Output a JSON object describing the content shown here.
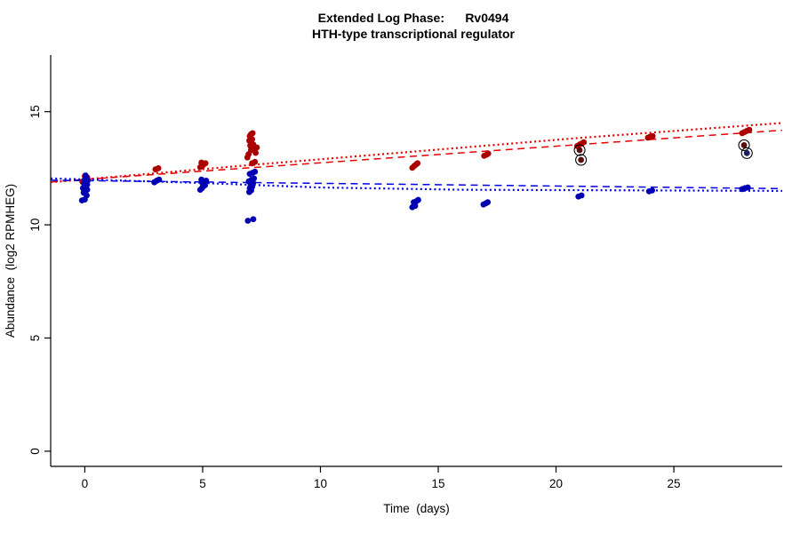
{
  "chart_data": {
    "type": "scatter",
    "title": "Extended Log Phase:      Rv0494",
    "subtitle": "HTH-type transcriptional regulator",
    "xlabel": "Time  (days)",
    "ylabel": "Abundance  (log2 RPMHEG)",
    "xlim": [
      -1.45,
      29.6
    ],
    "ylim": [
      -0.67,
      17.5
    ],
    "xticks": [
      0,
      5,
      10,
      15,
      20,
      25
    ],
    "yticks": [
      0,
      5,
      10,
      15
    ],
    "grid": false,
    "legend": null,
    "colors": {
      "red_points": "#AA0000",
      "blue_points": "#0000B2",
      "red_line": "#E60000",
      "blue_line": "#0000E6",
      "axis": "#000000"
    },
    "series": [
      {
        "name": "red-abundance",
        "color": "#AA0000",
        "points": [
          [
            -0.1,
            11.9
          ],
          [
            0,
            11.95
          ],
          [
            0.05,
            12.05
          ],
          [
            0.1,
            12.1
          ],
          [
            0,
            12.15
          ],
          [
            0.05,
            11.85
          ],
          [
            3,
            12.45
          ],
          [
            3.12,
            12.5
          ],
          [
            4.9,
            12.55
          ],
          [
            5,
            12.62
          ],
          [
            5.05,
            12.68
          ],
          [
            5.12,
            12.72
          ],
          [
            4.95,
            12.75
          ],
          [
            6.9,
            12.98
          ],
          [
            6.95,
            13.12
          ],
          [
            7,
            13.92
          ],
          [
            7.05,
            14.0
          ],
          [
            7.12,
            14.05
          ],
          [
            6.98,
            13.72
          ],
          [
            7.1,
            13.78
          ],
          [
            7.02,
            13.5
          ],
          [
            7.15,
            13.55
          ],
          [
            7.05,
            13.3
          ],
          [
            7.2,
            13.35
          ],
          [
            7.25,
            13.18
          ],
          [
            7.1,
            12.72
          ],
          [
            7.22,
            12.78
          ],
          [
            7.3,
            13.42
          ],
          [
            13.9,
            12.52
          ],
          [
            13.98,
            12.6
          ],
          [
            14.05,
            12.66
          ],
          [
            14.12,
            12.72
          ],
          [
            16.95,
            13.05
          ],
          [
            17.05,
            13.1
          ],
          [
            17.12,
            13.15
          ],
          [
            20.9,
            13.48
          ],
          [
            21,
            13.55
          ],
          [
            21.1,
            13.6
          ],
          [
            21.18,
            13.65
          ],
          [
            23.9,
            13.85
          ],
          [
            24,
            13.9
          ],
          [
            24.1,
            13.92
          ],
          [
            27.9,
            14.05
          ],
          [
            28,
            14.1
          ],
          [
            28.1,
            14.15
          ],
          [
            28.2,
            14.2
          ]
        ]
      },
      {
        "name": "blue-abundance",
        "color": "#0000B2",
        "points": [
          [
            -0.12,
            11.08
          ],
          [
            0,
            11.12
          ],
          [
            0.08,
            11.3
          ],
          [
            -0.05,
            11.42
          ],
          [
            0,
            11.5
          ],
          [
            0.1,
            11.55
          ],
          [
            -0.08,
            11.62
          ],
          [
            0.05,
            11.65
          ],
          [
            0,
            11.72
          ],
          [
            0.1,
            11.78
          ],
          [
            -0.03,
            11.82
          ],
          [
            0.06,
            11.88
          ],
          [
            0.12,
            11.95
          ],
          [
            0,
            12.0
          ],
          [
            0.08,
            12.05
          ],
          [
            0.03,
            12.18
          ],
          [
            2.95,
            11.88
          ],
          [
            3.05,
            11.95
          ],
          [
            3.15,
            12.0
          ],
          [
            4.9,
            11.55
          ],
          [
            4.97,
            11.62
          ],
          [
            5.03,
            11.7
          ],
          [
            5.1,
            11.75
          ],
          [
            5.0,
            11.82
          ],
          [
            5.08,
            11.88
          ],
          [
            5.15,
            11.95
          ],
          [
            4.95,
            12.0
          ],
          [
            6.92,
            10.18
          ],
          [
            7.15,
            10.25
          ],
          [
            6.98,
            11.45
          ],
          [
            7.06,
            11.52
          ],
          [
            7.0,
            11.62
          ],
          [
            7.1,
            11.68
          ],
          [
            7.04,
            11.78
          ],
          [
            7.14,
            11.85
          ],
          [
            6.96,
            11.92
          ],
          [
            7.08,
            12.0
          ],
          [
            7.18,
            12.05
          ],
          [
            7.0,
            12.25
          ],
          [
            7.12,
            12.3
          ],
          [
            7.22,
            12.35
          ],
          [
            13.9,
            10.78
          ],
          [
            14.02,
            10.84
          ],
          [
            13.96,
            11.0
          ],
          [
            14.08,
            11.05
          ],
          [
            14.15,
            11.1
          ],
          [
            16.92,
            10.9
          ],
          [
            17.02,
            10.95
          ],
          [
            17.1,
            11.0
          ],
          [
            20.95,
            11.25
          ],
          [
            21.08,
            11.3
          ],
          [
            23.95,
            11.48
          ],
          [
            24.08,
            11.52
          ],
          [
            27.9,
            11.58
          ],
          [
            28.02,
            11.62
          ],
          [
            28.14,
            11.65
          ]
        ]
      }
    ],
    "circled_points": [
      {
        "x": 21.0,
        "y": 13.3,
        "fill": "#5a0d0d"
      },
      {
        "x": 21.06,
        "y": 12.87,
        "fill": "#5a0d0d"
      },
      {
        "x": 27.98,
        "y": 13.52,
        "fill": "#5a0d0d"
      },
      {
        "x": 28.1,
        "y": 13.17,
        "fill": "#1c1c5e"
      }
    ],
    "trend_lines": [
      {
        "name": "red-dotted-fit",
        "color": "#E60000",
        "width": 2.2,
        "dash": "2,3.2",
        "points": [
          [
            -1.45,
            11.88
          ],
          [
            7,
            12.64
          ],
          [
            14,
            13.24
          ],
          [
            21,
            13.84
          ],
          [
            29.6,
            14.5
          ]
        ]
      },
      {
        "name": "red-dashed-fit",
        "color": "#E60000",
        "width": 1.5,
        "dash": "8,5.5",
        "points": [
          [
            -1.45,
            11.9
          ],
          [
            29.6,
            14.18
          ]
        ]
      },
      {
        "name": "blue-dotted-fit",
        "color": "#0000E6",
        "width": 2.2,
        "dash": "2,3.2",
        "points": [
          [
            -1.45,
            12.05
          ],
          [
            5,
            11.85
          ],
          [
            10,
            11.65
          ],
          [
            16,
            11.55
          ],
          [
            29.6,
            11.5
          ]
        ]
      },
      {
        "name": "blue-dashed-fit",
        "color": "#0000E6",
        "width": 1.5,
        "dash": "8,5.5",
        "points": [
          [
            -1.45,
            11.97
          ],
          [
            29.6,
            11.6
          ]
        ]
      }
    ]
  }
}
